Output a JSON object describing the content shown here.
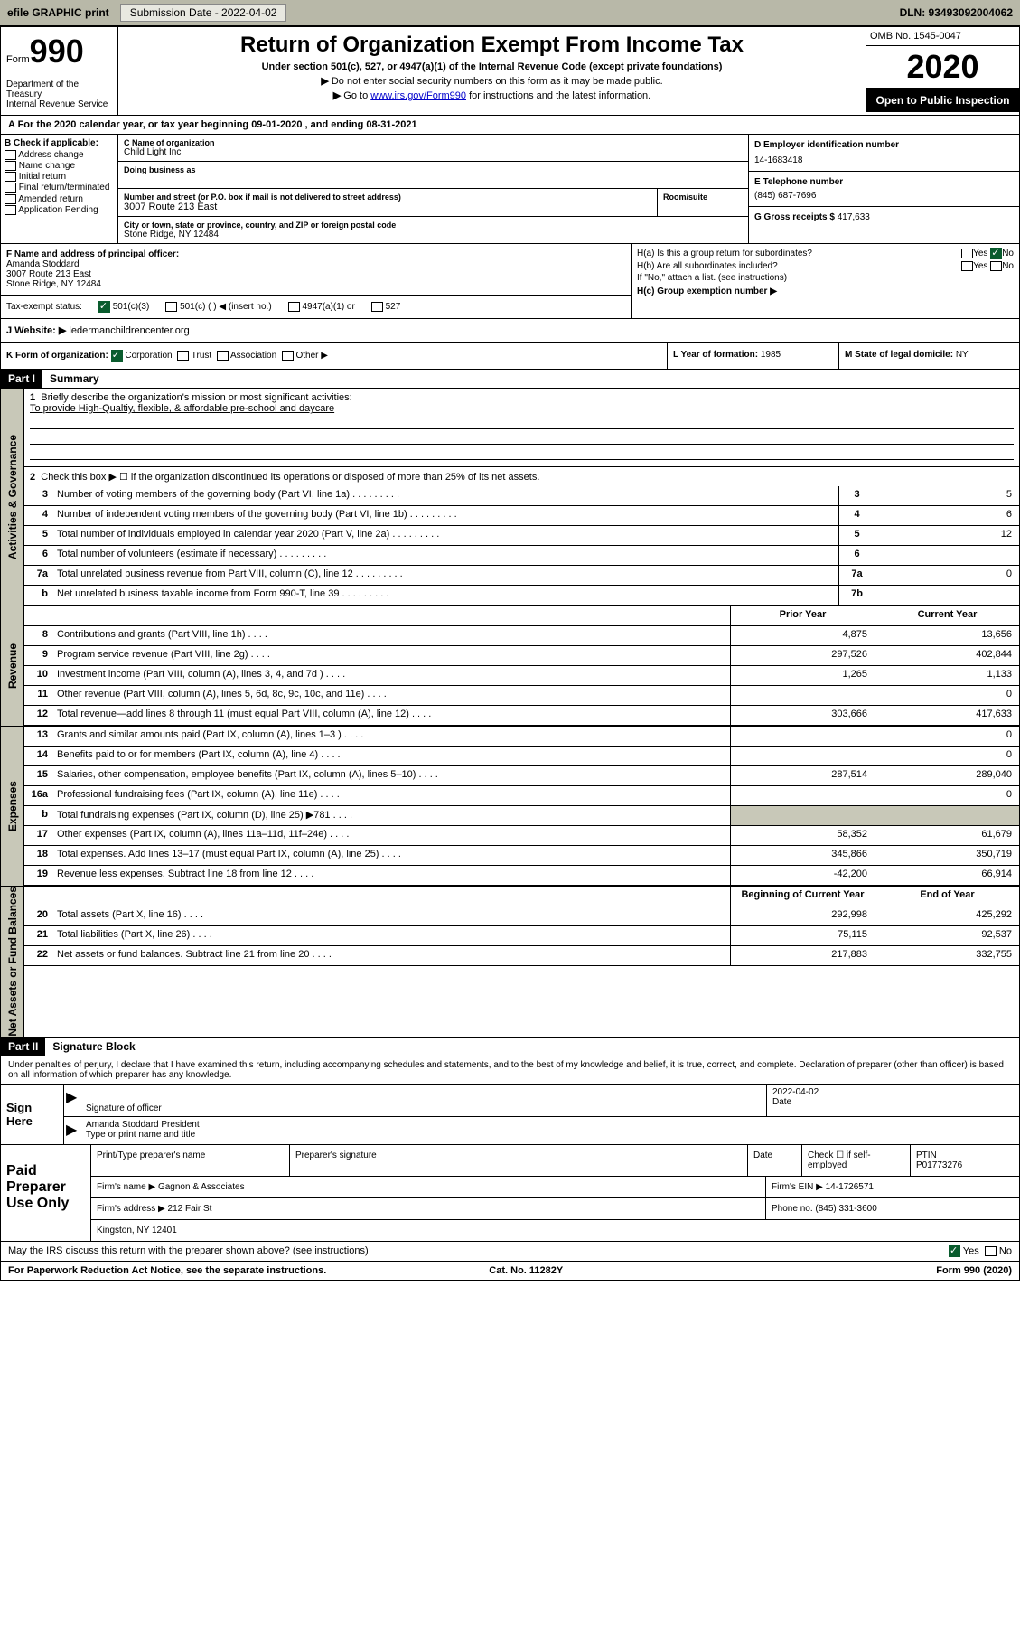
{
  "topbar": {
    "efile_label": "efile GRAPHIC print",
    "submission_label": "Submission Date - 2022-04-02",
    "dln": "DLN: 93493092004062"
  },
  "header": {
    "form_word": "Form",
    "form_num": "990",
    "dept": "Department of the Treasury\nInternal Revenue Service",
    "main_title": "Return of Organization Exempt From Income Tax",
    "subtitle": "Under section 501(c), 527, or 4947(a)(1) of the Internal Revenue Code (except private foundations)",
    "instr1": "Do not enter social security numbers on this form as it may be made public.",
    "instr2_pre": "Go to ",
    "instr2_link": "www.irs.gov/Form990",
    "instr2_post": " for instructions and the latest information.",
    "omb": "OMB No. 1545-0047",
    "year": "2020",
    "public_insp": "Open to Public Inspection"
  },
  "rowA": "A   For the 2020 calendar year, or tax year beginning 09-01-2020    , and ending 08-31-2021",
  "sectionB": {
    "header": "B Check if applicable:",
    "items": [
      "Address change",
      "Name change",
      "Initial return",
      "Final return/terminated",
      "Amended return",
      "Application Pending"
    ]
  },
  "sectionC": {
    "name_label": "C Name of organization",
    "name": "Child Light Inc",
    "dba_label": "Doing business as",
    "street_label": "Number and street (or P.O. box if mail is not delivered to street address)",
    "street": "3007 Route 213 East",
    "room_label": "Room/suite",
    "city_label": "City or town, state or province, country, and ZIP or foreign postal code",
    "city": "Stone Ridge, NY  12484"
  },
  "sectionD": {
    "ein_label": "D Employer identification number",
    "ein": "14-1683418",
    "phone_label": "E Telephone number",
    "phone": "(845) 687-7696",
    "gross_label": "G Gross receipts $",
    "gross": "417,633"
  },
  "sectionF": {
    "label": "F Name and address of principal officer:",
    "name": "Amanda Stoddard",
    "street": "3007 Route 213 East",
    "city": "Stone Ridge, NY  12484"
  },
  "sectionH": {
    "ha": "H(a)  Is this a group return for subordinates?",
    "hb": "H(b)  Are all subordinates included?",
    "hb_note": "If \"No,\" attach a list. (see instructions)",
    "hc": "H(c)  Group exemption number ▶"
  },
  "taxStatus": {
    "label": "Tax-exempt status:",
    "opt1": "501(c)(3)",
    "opt2": "501(c) (   ) ◀ (insert no.)",
    "opt3": "4947(a)(1) or",
    "opt4": "527"
  },
  "websiteJ": {
    "label": "J    Website: ▶",
    "value": "ledermanchildrencenter.org"
  },
  "rowK": {
    "k_label": "K Form of organization:",
    "k_opts": [
      "Corporation",
      "Trust",
      "Association",
      "Other ▶"
    ],
    "l_label": "L Year of formation:",
    "l_val": "1985",
    "m_label": "M State of legal domicile:",
    "m_val": "NY"
  },
  "part1": {
    "header": "Part I",
    "title": "Summary",
    "line1_label": "Briefly describe the organization's mission or most significant activities:",
    "line1_val": "To provide High-Qualtiy, flexible, & affordable pre-school and daycare",
    "line2": "Check this box ▶ ☐  if the organization discontinued its operations or disposed of more than 25% of its net assets.",
    "lines_gov": [
      {
        "n": "3",
        "t": "Number of voting members of the governing body (Part VI, line 1a)",
        "box": "3",
        "v": "5"
      },
      {
        "n": "4",
        "t": "Number of independent voting members of the governing body (Part VI, line 1b)",
        "box": "4",
        "v": "6"
      },
      {
        "n": "5",
        "t": "Total number of individuals employed in calendar year 2020 (Part V, line 2a)",
        "box": "5",
        "v": "12"
      },
      {
        "n": "6",
        "t": "Total number of volunteers (estimate if necessary)",
        "box": "6",
        "v": ""
      },
      {
        "n": "7a",
        "t": "Total unrelated business revenue from Part VIII, column (C), line 12",
        "box": "7a",
        "v": "0"
      },
      {
        "n": "b",
        "t": "Net unrelated business taxable income from Form 990-T, line 39",
        "box": "7b",
        "v": ""
      }
    ],
    "col_headers": {
      "prior": "Prior Year",
      "current": "Current Year",
      "begin": "Beginning of Current Year",
      "end": "End of Year"
    },
    "revenue": [
      {
        "n": "8",
        "t": "Contributions and grants (Part VIII, line 1h)",
        "p": "4,875",
        "c": "13,656"
      },
      {
        "n": "9",
        "t": "Program service revenue (Part VIII, line 2g)",
        "p": "297,526",
        "c": "402,844"
      },
      {
        "n": "10",
        "t": "Investment income (Part VIII, column (A), lines 3, 4, and 7d )",
        "p": "1,265",
        "c": "1,133"
      },
      {
        "n": "11",
        "t": "Other revenue (Part VIII, column (A), lines 5, 6d, 8c, 9c, 10c, and 11e)",
        "p": "",
        "c": "0"
      },
      {
        "n": "12",
        "t": "Total revenue—add lines 8 through 11 (must equal Part VIII, column (A), line 12)",
        "p": "303,666",
        "c": "417,633"
      }
    ],
    "expenses": [
      {
        "n": "13",
        "t": "Grants and similar amounts paid (Part IX, column (A), lines 1–3 )",
        "p": "",
        "c": "0"
      },
      {
        "n": "14",
        "t": "Benefits paid to or for members (Part IX, column (A), line 4)",
        "p": "",
        "c": "0"
      },
      {
        "n": "15",
        "t": "Salaries, other compensation, employee benefits (Part IX, column (A), lines 5–10)",
        "p": "287,514",
        "c": "289,040"
      },
      {
        "n": "16a",
        "t": "Professional fundraising fees (Part IX, column (A), line 11e)",
        "p": "",
        "c": "0"
      },
      {
        "n": "b",
        "t": "Total fundraising expenses (Part IX, column (D), line 25) ▶781",
        "p": "shaded",
        "c": "shaded"
      },
      {
        "n": "17",
        "t": "Other expenses (Part IX, column (A), lines 11a–11d, 11f–24e)",
        "p": "58,352",
        "c": "61,679"
      },
      {
        "n": "18",
        "t": "Total expenses. Add lines 13–17 (must equal Part IX, column (A), line 25)",
        "p": "345,866",
        "c": "350,719"
      },
      {
        "n": "19",
        "t": "Revenue less expenses. Subtract line 18 from line 12",
        "p": "-42,200",
        "c": "66,914"
      }
    ],
    "netassets": [
      {
        "n": "20",
        "t": "Total assets (Part X, line 16)",
        "p": "292,998",
        "c": "425,292"
      },
      {
        "n": "21",
        "t": "Total liabilities (Part X, line 26)",
        "p": "75,115",
        "c": "92,537"
      },
      {
        "n": "22",
        "t": "Net assets or fund balances. Subtract line 21 from line 20",
        "p": "217,883",
        "c": "332,755"
      }
    ],
    "side_labels": {
      "gov": "Activities & Governance",
      "rev": "Revenue",
      "exp": "Expenses",
      "net": "Net Assets or Fund Balances"
    }
  },
  "part2": {
    "header": "Part II",
    "title": "Signature Block",
    "declaration": "Under penalties of perjury, I declare that I have examined this return, including accompanying schedules and statements, and to the best of my knowledge and belief, it is true, correct, and complete. Declaration of preparer (other than officer) is based on all information of which preparer has any knowledge."
  },
  "sign": {
    "left": "Sign Here",
    "sig_label": "Signature of officer",
    "date_label": "Date",
    "date_val": "2022-04-02",
    "name": "Amanda Stoddard  President",
    "name_label": "Type or print name and title"
  },
  "preparer": {
    "left": "Paid Preparer Use Only",
    "h1": "Print/Type preparer's name",
    "h2": "Preparer's signature",
    "h3": "Date",
    "h4": "Check ☐ if self-employed",
    "h5_label": "PTIN",
    "h5_val": "P01773276",
    "firm_name_label": "Firm's name     ▶",
    "firm_name": "Gagnon & Associates",
    "firm_ein_label": "Firm's EIN ▶",
    "firm_ein": "14-1726571",
    "firm_addr_label": "Firm's address ▶",
    "firm_addr": "212 Fair St",
    "firm_city": "Kingston, NY  12401",
    "phone_label": "Phone no.",
    "phone": "(845) 331-3600"
  },
  "discuss": "May the IRS discuss this return with the preparer shown above? (see instructions)",
  "footer": {
    "left": "For Paperwork Reduction Act Notice, see the separate instructions.",
    "mid": "Cat. No. 11282Y",
    "right": "Form 990 (2020)"
  }
}
